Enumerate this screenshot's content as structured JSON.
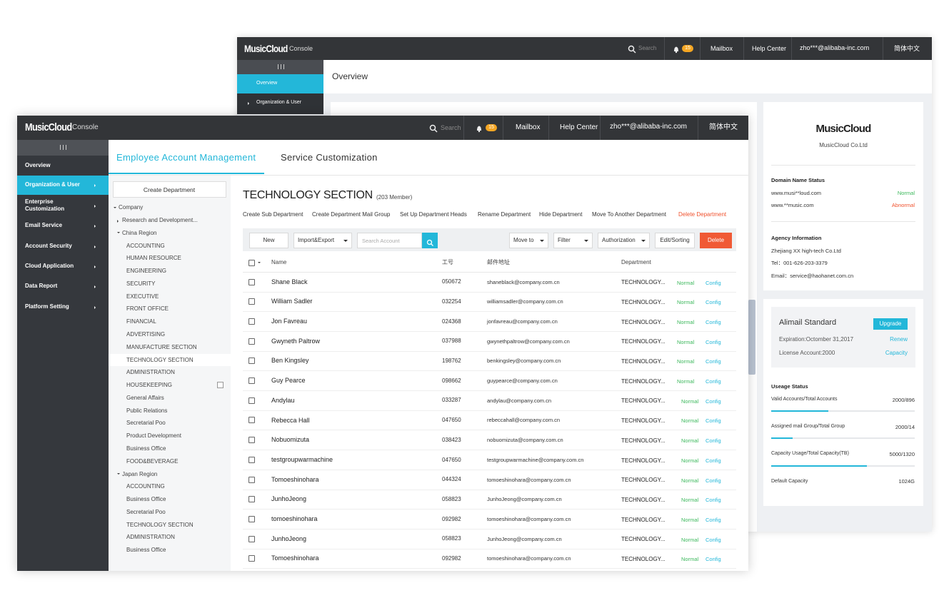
{
  "back": {
    "header": {
      "brand": "MusicCloud",
      "console": "Console",
      "search": "Search",
      "badge": "15",
      "mailbox": "Mailbox",
      "help": "Help Center",
      "email": "zho***@alibaba-inc.com",
      "lang": "简体中文"
    },
    "nav": [
      "Overview",
      "Organization & User"
    ],
    "page_title": "Overview",
    "company_card": {
      "logo": "MusicCloud",
      "company": "MusicCloud Co.Ltd",
      "domain_title": "Domain  Name  Status",
      "domains": [
        {
          "name": "www.musi**loud.com",
          "status": "Normal"
        },
        {
          "name": "www.**music.com",
          "status": "Abnormal"
        }
      ],
      "agency_title": "Agency  Information",
      "agency": [
        "Zhejiang XX high-tech Co.Ltd",
        "Tel：001-626-203-3379",
        "Email：service@haohanet.com.cn"
      ]
    },
    "plan_card": {
      "name": "Alimail Standard",
      "upgrade": "Upgrade",
      "expiration": "Expiration:Octomber 31,2017",
      "renew": "Renew",
      "license": "License  Account:2000",
      "capacity": "Capacity",
      "usage_title": "Useage  Status",
      "usage": [
        {
          "label": "Valid Accounts/Total Accounts",
          "value": "2000/896"
        },
        {
          "label": "Assigned mail Group/Total Group",
          "value": "2000/14"
        },
        {
          "label": "Capacity Usage/Total Capacity(TB)",
          "value": "5000/1320"
        },
        {
          "label": "Default Capacity",
          "value": "1024G"
        }
      ]
    }
  },
  "front": {
    "header": {
      "brand": "MusicCloud",
      "console": "Console",
      "search": "Search",
      "badge": "15",
      "mailbox": "Mailbox",
      "help": "Help Center",
      "email": "zho***@alibaba-inc.com",
      "lang": "简体中文"
    },
    "nav": [
      "Overview",
      "Organization & User",
      "Enterprise Customization",
      "Email Service",
      "Account Security",
      "Cloud Application",
      "Data Report",
      "Platform Setting"
    ],
    "tabs": [
      "Employee  Account  Management",
      "Service  Customization"
    ],
    "create_department": "Create  Department",
    "tree": {
      "label": "Company",
      "children": [
        {
          "label": "Research and Development..."
        },
        {
          "label": "China Region",
          "children": [
            "ACCOUNTING",
            "HUMAN RESOURCE",
            "ENGINEERING",
            "SECURITY",
            "EXECUTIVE",
            "FRONT OFFICE",
            "FINANCIAL",
            "ADVERTISING",
            "MANUFACTURE SECTION",
            "TECHNOLOGY SECTION",
            "ADMINISTRATION",
            "HOUSEKEEPING",
            "General Affairs",
            "Public Relations",
            "Secretarial Poo",
            "Product Development",
            "Business Office",
            "FOOD&BEVERAGE"
          ]
        },
        {
          "label": "Japan Region",
          "children": [
            "ACCOUNTING",
            "Business Office",
            "Secretarial Poo",
            "TECHNOLOGY SECTION",
            "ADMINISTRATION",
            "Business Office"
          ]
        }
      ]
    },
    "section_title": "TECHNOLOGY SECTION",
    "member_count": "(203 Member)",
    "actions": [
      "Create Sub Department",
      "Create Department Mail Group",
      "Set Up Department Heads",
      "Rename Department",
      "Hide Department",
      "Move To Another Department",
      "Delete Department"
    ],
    "toolbar": {
      "new": "New",
      "import_export": "Import&Export",
      "search_placeholder": "Search Account",
      "move_to": "Move to",
      "filter": "Filter",
      "authorization": "Authorization",
      "edit_sorting": "Edit/Sorting",
      "delete": "Delete"
    },
    "table": {
      "headers": [
        "Name",
        "工号",
        "邮件地址",
        "Department"
      ],
      "rows": [
        [
          "Shane Black",
          "050672",
          "shaneblack@company.com.cn",
          "TECHNOLOGY...",
          "Normal",
          "Config"
        ],
        [
          "William Sadler",
          "032254",
          "williamsadler@company.com.cn",
          "TECHNOLOGY...",
          "Normal",
          "Config"
        ],
        [
          "Jon Favreau",
          "024368",
          "jonfavreau@company.com.cn",
          "TECHNOLOGY...",
          "Normal",
          "Config"
        ],
        [
          "Gwyneth Paltrow",
          "037988",
          "gwynethpaltrow@company.com.cn",
          "TECHNOLOGY...",
          "Normal",
          "Config"
        ],
        [
          "Ben Kingsley",
          "198762",
          "benkingsley@company.com.cn",
          "TECHNOLOGY...",
          "Normal",
          "Config"
        ],
        [
          "Guy Pearce",
          "098662",
          "guypearce@company.com.cn",
          "TECHNOLOGY...",
          "Normal",
          "Config"
        ],
        [
          "Andylau",
          "033287",
          "andylau@company.com.cn",
          "TECHNOLOGY...",
          "Normal",
          "Config"
        ],
        [
          "Rebecca Hall",
          "047650",
          "rebeccahall@company.com.cn",
          "TECHNOLOGY...",
          "Normal",
          "Config"
        ],
        [
          "Nobuomizuta",
          "038423",
          "nobuomizuta@company.com.cn",
          "TECHNOLOGY...",
          "Normal",
          "Config"
        ],
        [
          "testgroupwarmachine",
          "047650",
          "testgroupwarmachine@company.com.cn",
          "TECHNOLOGY...",
          "Normal",
          "Config"
        ],
        [
          "Tomoeshinohara",
          "044324",
          "tomoeshinohara@company.com.cn",
          "TECHNOLOGY...",
          "Normal",
          "Config"
        ],
        [
          "JunhoJeong",
          "058823",
          "JunhoJeong@company.com.cn",
          "TECHNOLOGY...",
          "Normal",
          "Config"
        ],
        [
          "tomoeshinohara",
          "092982",
          "tomoeshinohara@company.com.cn",
          "TECHNOLOGY...",
          "Normal",
          "Config"
        ],
        [
          "JunhoJeong",
          "058823",
          "JunhoJeong@company.com.cn",
          "TECHNOLOGY...",
          "Normal",
          "Config"
        ],
        [
          "Tomoeshinohara",
          "092982",
          "tomoeshinohara@company.com.cn",
          "TECHNOLOGY...",
          "Normal",
          "Config"
        ]
      ]
    }
  }
}
